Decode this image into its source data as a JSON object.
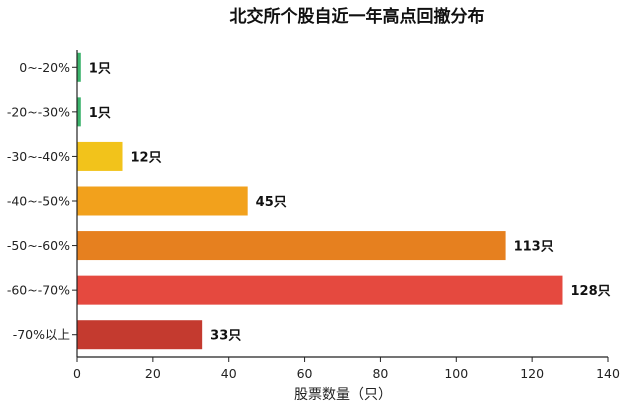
{
  "chart_data": {
    "type": "bar",
    "orientation": "horizontal",
    "title": "北交所个股自近一年高点回撤分布",
    "xlabel": "股票数量（只）",
    "ylabel": "",
    "categories": [
      "0~-20%",
      "-20~-30%",
      "-30~-40%",
      "-40~-50%",
      "-50~-60%",
      "-60~-70%",
      "-70%以上"
    ],
    "values": [
      1,
      1,
      12,
      45,
      113,
      128,
      33
    ],
    "data_labels": [
      "1只",
      "1只",
      "12只",
      "45只",
      "113只",
      "128只",
      "33只"
    ],
    "colors": [
      "#3bb36b",
      "#3bb36b",
      "#f2c31b",
      "#f2a11c",
      "#e6801f",
      "#e5493f",
      "#c43a2f"
    ],
    "xlim": [
      0,
      140
    ],
    "xticks": [
      "0",
      "20",
      "40",
      "60",
      "80",
      "100",
      "120",
      "140"
    ],
    "grid": false,
    "legend": "none"
  }
}
